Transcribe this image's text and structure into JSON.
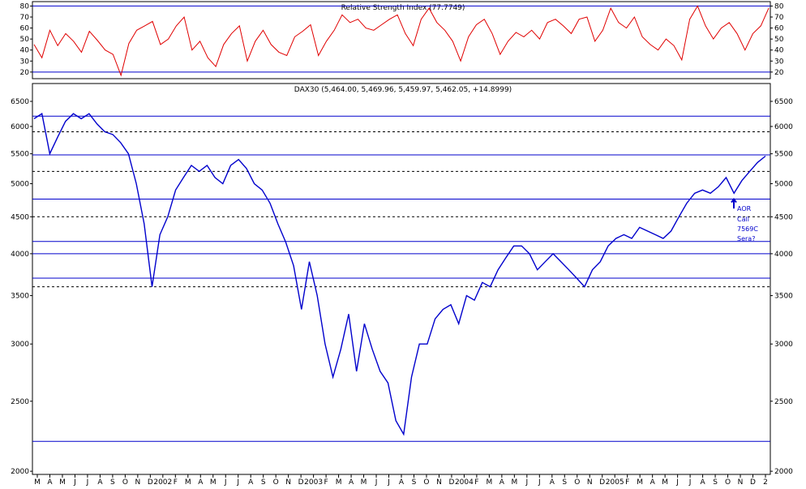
{
  "chart_data": [
    {
      "type": "line",
      "title": "Relative Strength Index (77.7749)",
      "y_ticks": [
        20,
        30,
        40,
        50,
        60,
        70,
        80
      ],
      "ylim": [
        14,
        84
      ],
      "h_lines": [
        20,
        80
      ],
      "last_value": 77.7749,
      "series": [
        {
          "color": "#e00000",
          "values": [
            45,
            33,
            58,
            44,
            55,
            48,
            38,
            57,
            49,
            40,
            36,
            17,
            46,
            58,
            62,
            66,
            45,
            50,
            62,
            70,
            40,
            48,
            33,
            25,
            45,
            55,
            62,
            30,
            48,
            58,
            45,
            38,
            35,
            52,
            57,
            63,
            35,
            48,
            58,
            72,
            65,
            68,
            60,
            58,
            63,
            68,
            72,
            55,
            44,
            68,
            78,
            65,
            58,
            48,
            30,
            52,
            63,
            68,
            55,
            36,
            48,
            56,
            52,
            58,
            50,
            65,
            68,
            62,
            55,
            68,
            70,
            48,
            58,
            78,
            65,
            60,
            70,
            52,
            45,
            40,
            50,
            44,
            31,
            68,
            80,
            62,
            50,
            60,
            65,
            55,
            40,
            55,
            62,
            78
          ]
        }
      ]
    },
    {
      "type": "line",
      "title": "DAX30 (5,464.00, 5,469.96, 5,459.97, 5,462.05, +14.8999)",
      "scale": "log",
      "y_ticks": [
        2000,
        2500,
        3000,
        3500,
        4000,
        4500,
        5000,
        5500,
        6000,
        6500
      ],
      "ylim": [
        1980,
        6880
      ],
      "x_ticks": [
        "M",
        "A",
        "M",
        "J",
        "J",
        "A",
        "S",
        "O",
        "N",
        "D",
        "2002",
        "F",
        "M",
        "A",
        "M",
        "J",
        "J",
        "A",
        "S",
        "O",
        "N",
        "D",
        "2003",
        "F",
        "M",
        "A",
        "M",
        "J",
        "J",
        "A",
        "S",
        "O",
        "N",
        "D",
        "2004",
        "F",
        "M",
        "A",
        "M",
        "J",
        "J",
        "A",
        "S",
        "O",
        "N",
        "D",
        "2005",
        "F",
        "M",
        "A",
        "M",
        "J",
        "J",
        "A",
        "S",
        "O",
        "N",
        "D",
        "2"
      ],
      "horizontal_lines": [
        {
          "value": 6200,
          "style": "solid"
        },
        {
          "value": 5900,
          "style": "dashed"
        },
        {
          "value": 5480,
          "style": "solid"
        },
        {
          "value": 5200,
          "style": "dashed"
        },
        {
          "value": 4760,
          "style": "solid"
        },
        {
          "value": 4500,
          "style": "dashed"
        },
        {
          "value": 4160,
          "style": "solid"
        },
        {
          "value": 4000,
          "style": "solid"
        },
        {
          "value": 3700,
          "style": "solid"
        },
        {
          "value": 3600,
          "style": "dashed"
        },
        {
          "value": 2200,
          "style": "solid"
        }
      ],
      "annotations": [
        "AOR",
        "Call",
        "7569C",
        "Sera?"
      ],
      "series": [
        {
          "color": "#0000cc",
          "values": [
            6150,
            6250,
            5500,
            5800,
            6100,
            6250,
            6150,
            6250,
            6050,
            5900,
            5850,
            5700,
            5500,
            5000,
            4400,
            3600,
            4250,
            4500,
            4900,
            5100,
            5300,
            5200,
            5300,
            5100,
            5000,
            5300,
            5400,
            5250,
            5000,
            4900,
            4700,
            4400,
            4150,
            3850,
            3350,
            3900,
            3500,
            3000,
            2700,
            2950,
            3300,
            2750,
            3200,
            2950,
            2750,
            2650,
            2350,
            2250,
            2700,
            3000,
            3000,
            3250,
            3350,
            3400,
            3200,
            3500,
            3450,
            3650,
            3600,
            3800,
            3950,
            4100,
            4100,
            4000,
            3800,
            3900,
            4000,
            3900,
            3800,
            3700,
            3600,
            3800,
            3900,
            4100,
            4200,
            4250,
            4200,
            4350,
            4300,
            4250,
            4200,
            4300,
            4500,
            4700,
            4850,
            4900,
            4850,
            4950,
            5100,
            4850,
            5050,
            5200,
            5350,
            5460
          ]
        }
      ]
    }
  ]
}
